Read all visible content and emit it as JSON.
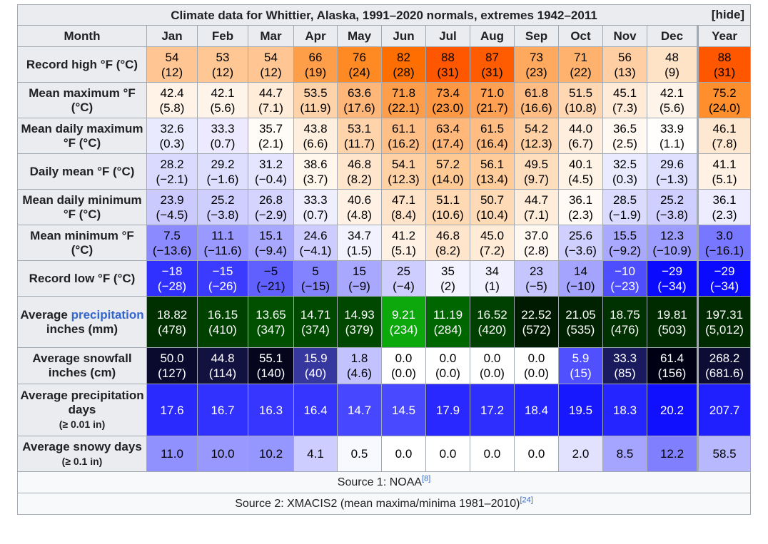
{
  "title": "Climate data for Whittier, Alaska, 1991–2020 normals, extremes 1942–2011",
  "hide_label": "[hide]",
  "month_header": "Month",
  "months": [
    "Jan",
    "Feb",
    "Mar",
    "Apr",
    "May",
    "Jun",
    "Jul",
    "Aug",
    "Sep",
    "Oct",
    "Nov",
    "Dec",
    "Year"
  ],
  "rows": [
    {
      "key": "record-high",
      "label": "Record high °F (°C)",
      "cells": [
        [
          "54",
          "(12)",
          "#ffc592"
        ],
        [
          "53",
          "(12)",
          "#ffc794"
        ],
        [
          "54",
          "(12)",
          "#ffc592"
        ],
        [
          "66",
          "(19)",
          "#ff9e49"
        ],
        [
          "76",
          "(24)",
          "#ff8a23"
        ],
        [
          "82",
          "(28)",
          "#ff6e00"
        ],
        [
          "88",
          "(31)",
          "#ff5600"
        ],
        [
          "87",
          "(31)",
          "#ff5b00"
        ],
        [
          "73",
          "(23)",
          "#ffa95e"
        ],
        [
          "71",
          "(22)",
          "#ffb26e"
        ],
        [
          "56",
          "(13)",
          "#ffcfa3"
        ],
        [
          "48",
          "(9)",
          "#ffe3c7"
        ],
        [
          "88",
          "(31)",
          "#ff5600"
        ]
      ]
    },
    {
      "key": "mean-max",
      "label": "Mean maximum °F (°C)",
      "cells": [
        [
          "42.4",
          "(5.8)",
          "#fff3e8"
        ],
        [
          "42.1",
          "(5.6)",
          "#fff4e9"
        ],
        [
          "44.7",
          "(7.1)",
          "#ffecd9"
        ],
        [
          "53.5",
          "(11.9)",
          "#ffd3a9"
        ],
        [
          "63.6",
          "(17.6)",
          "#ffb779"
        ],
        [
          "71.8",
          "(22.1)",
          "#ff9e4a"
        ],
        [
          "73.4",
          "(23.0)",
          "#ff9843"
        ],
        [
          "71.0",
          "(21.7)",
          "#ffa052"
        ],
        [
          "61.8",
          "(16.6)",
          "#ffbd83"
        ],
        [
          "51.5",
          "(10.8)",
          "#ffd8b3"
        ],
        [
          "45.1",
          "(7.3)",
          "#ffebd7"
        ],
        [
          "42.1",
          "(5.6)",
          "#fff4e9"
        ],
        [
          "75.2",
          "(24.0)",
          "#ff8e2c"
        ]
      ]
    },
    {
      "key": "mean-daily-max",
      "label": "Mean daily maximum °F (°C)",
      "cells": [
        [
          "32.6",
          "(0.3)",
          "#eaeaff"
        ],
        [
          "33.3",
          "(0.7)",
          "#edeaff"
        ],
        [
          "35.7",
          "(2.1)",
          "#fffbf7"
        ],
        [
          "43.8",
          "(6.6)",
          "#ffefde"
        ],
        [
          "53.1",
          "(11.7)",
          "#ffd4aa"
        ],
        [
          "61.1",
          "(16.2)",
          "#ffbf86"
        ],
        [
          "63.4",
          "(17.4)",
          "#ffb87a"
        ],
        [
          "61.5",
          "(16.4)",
          "#ffbd83"
        ],
        [
          "54.2",
          "(12.3)",
          "#ffd1a4"
        ],
        [
          "44.0",
          "(6.7)",
          "#ffeedd"
        ],
        [
          "36.5",
          "(2.5)",
          "#fff9f2"
        ],
        [
          "33.9",
          "(1.1)",
          "#fffefc"
        ],
        [
          "46.1",
          "(7.8)",
          "#ffe8d1"
        ]
      ]
    },
    {
      "key": "daily-mean",
      "label": "Daily mean °F (°C)",
      "cells": [
        [
          "28.2",
          "(−2.1)",
          "#dadaff"
        ],
        [
          "29.2",
          "(−1.6)",
          "#dedeff"
        ],
        [
          "31.2",
          "(−0.4)",
          "#e5e5ff"
        ],
        [
          "38.6",
          "(3.7)",
          "#fff6ec"
        ],
        [
          "46.8",
          "(8.2)",
          "#ffe5cc"
        ],
        [
          "54.1",
          "(12.3)",
          "#ffd1a5"
        ],
        [
          "57.2",
          "(14.0)",
          "#ffc994"
        ],
        [
          "56.1",
          "(13.4)",
          "#ffcc9a"
        ],
        [
          "49.5",
          "(9.7)",
          "#ffdebe"
        ],
        [
          "40.1",
          "(4.5)",
          "#fff3e6"
        ],
        [
          "32.5",
          "(0.3)",
          "#ebebff"
        ],
        [
          "29.6",
          "(−1.3)",
          "#dfdfff"
        ],
        [
          "41.1",
          "(5.1)",
          "#fff1e3"
        ]
      ]
    },
    {
      "key": "mean-daily-min",
      "label": "Mean daily minimum °F (°C)",
      "cells": [
        [
          "23.9",
          "(−4.5)",
          "#cacaff"
        ],
        [
          "25.2",
          "(−3.8)",
          "#cfcfff"
        ],
        [
          "26.8",
          "(−2.9)",
          "#d4d4ff"
        ],
        [
          "33.3",
          "(0.7)",
          "#eeeeff"
        ],
        [
          "40.6",
          "(4.8)",
          "#fff2e4"
        ],
        [
          "47.1",
          "(8.4)",
          "#ffe4c9"
        ],
        [
          "51.1",
          "(10.6)",
          "#ffd9b4"
        ],
        [
          "50.7",
          "(10.4)",
          "#ffdab7"
        ],
        [
          "44.7",
          "(7.1)",
          "#ffecd9"
        ],
        [
          "36.1",
          "(2.3)",
          "#fffaf4"
        ],
        [
          "28.5",
          "(−1.9)",
          "#dbdbff"
        ],
        [
          "25.2",
          "(−3.8)",
          "#cfcfff"
        ],
        [
          "36.1",
          "(2.3)",
          "#ededff"
        ]
      ]
    },
    {
      "key": "mean-min",
      "label": "Mean minimum °F (°C)",
      "cells": [
        [
          "7.5",
          "(−13.6)",
          "#8b8bff"
        ],
        [
          "11.1",
          "(−11.6)",
          "#9999ff"
        ],
        [
          "15.1",
          "(−9.4)",
          "#a8a8ff"
        ],
        [
          "24.6",
          "(−4.1)",
          "#ccccff"
        ],
        [
          "34.7",
          "(1.5)",
          "#f2f2ff"
        ],
        [
          "41.2",
          "(5.1)",
          "#fff2e4"
        ],
        [
          "46.8",
          "(8.2)",
          "#ffe5cc"
        ],
        [
          "45.0",
          "(7.2)",
          "#ffebd6"
        ],
        [
          "37.0",
          "(2.8)",
          "#fff8f1"
        ],
        [
          "25.6",
          "(−3.6)",
          "#d0d0ff"
        ],
        [
          "15.5",
          "(−9.2)",
          "#a9a9ff"
        ],
        [
          "12.3",
          "(−10.9)",
          "#9d9dff"
        ],
        [
          "3.0",
          "(−16.1)",
          "#7777ff"
        ]
      ]
    },
    {
      "key": "record-low",
      "label": "Record low °F (°C)",
      "cells": [
        [
          "−18",
          "(−28)",
          "#3030ff"
        ],
        [
          "−15",
          "(−26)",
          "#3b3bff"
        ],
        [
          "−5",
          "(−21)",
          "#6060ff"
        ],
        [
          "5",
          "(−15)",
          "#8383ff"
        ],
        [
          "15",
          "(−9)",
          "#a8a8ff"
        ],
        [
          "25",
          "(−4)",
          "#cdcdff"
        ],
        [
          "35",
          "(2)",
          "#f3f3ff"
        ],
        [
          "34",
          "(1)",
          "#f0f0ff"
        ],
        [
          "23",
          "(−5)",
          "#c5c5ff"
        ],
        [
          "14",
          "(−10)",
          "#a4a4ff"
        ],
        [
          "−10",
          "(−23)",
          "#4e4eff"
        ],
        [
          "−29",
          "(−34)",
          "#0a0aff"
        ],
        [
          "−29",
          "(−34)",
          "#0a0aff"
        ]
      ]
    },
    {
      "key": "precipitation",
      "label_parts": [
        "Average ",
        "precipitation",
        " inches (mm)"
      ],
      "cells": [
        [
          "18.82",
          "(478)",
          "#003000"
        ],
        [
          "16.15",
          "(410)",
          "#004100"
        ],
        [
          "13.65",
          "(347)",
          "#005000"
        ],
        [
          "14.71",
          "(374)",
          "#004a00"
        ],
        [
          "14.93",
          "(379)",
          "#004800"
        ],
        [
          "9.21",
          "(234)",
          "#0ca80c"
        ],
        [
          "11.19",
          "(284)",
          "#006600"
        ],
        [
          "16.52",
          "(420)",
          "#004000"
        ],
        [
          "22.52",
          "(572)",
          "#001a00"
        ],
        [
          "21.05",
          "(535)",
          "#002200"
        ],
        [
          "18.75",
          "(476)",
          "#003100"
        ],
        [
          "19.81",
          "(503)",
          "#002b00"
        ],
        [
          "197.31",
          "(5,012)",
          "#002a00"
        ]
      ]
    },
    {
      "key": "snowfall",
      "label": "Average snowfall inches (cm)",
      "cells": [
        [
          "50.0",
          "(127)",
          "#0a0a2e"
        ],
        [
          "44.8",
          "(114)",
          "#121240"
        ],
        [
          "55.1",
          "(140)",
          "#05051e"
        ],
        [
          "15.9",
          "(40)",
          "#3737a0"
        ],
        [
          "1.8",
          "(4.6)",
          "#c2c2ff"
        ],
        [
          "0.0",
          "(0.0)",
          "#ffffff"
        ],
        [
          "0.0",
          "(0.0)",
          "#ffffff"
        ],
        [
          "0.0",
          "(0.0)",
          "#ffffff"
        ],
        [
          "0.0",
          "(0.0)",
          "#ffffff"
        ],
        [
          "5.9",
          "(15)",
          "#5050ff"
        ],
        [
          "33.3",
          "(85)",
          "#1a1a5e"
        ],
        [
          "61.4",
          "(156)",
          "#000014"
        ],
        [
          "268.2",
          "(681.6)",
          "#0c0c34"
        ]
      ]
    },
    {
      "key": "precip-days",
      "label": "Average precipitation days",
      "sub": "(≥ 0.01 in)",
      "cells": [
        [
          "17.6",
          "",
          "#2a2aff"
        ],
        [
          "16.7",
          "",
          "#3232ff"
        ],
        [
          "16.3",
          "",
          "#3636ff"
        ],
        [
          "16.4",
          "",
          "#3535ff"
        ],
        [
          "14.7",
          "",
          "#4747ff"
        ],
        [
          "14.5",
          "",
          "#4949ff"
        ],
        [
          "17.9",
          "",
          "#2828ff"
        ],
        [
          "17.2",
          "",
          "#2e2eff"
        ],
        [
          "18.4",
          "",
          "#2424ff"
        ],
        [
          "19.5",
          "",
          "#1818ff"
        ],
        [
          "18.3",
          "",
          "#2525ff"
        ],
        [
          "20.2",
          "",
          "#1010ff"
        ],
        [
          "207.7",
          "",
          "#2020ff"
        ]
      ]
    },
    {
      "key": "snowy-days",
      "label": "Average snowy days",
      "sub": "(≥ 0.1 in)",
      "cells": [
        [
          "11.0",
          "",
          "#9090ff"
        ],
        [
          "10.0",
          "",
          "#9898ff"
        ],
        [
          "10.2",
          "",
          "#9696ff"
        ],
        [
          "4.1",
          "",
          "#cdcdff"
        ],
        [
          "0.5",
          "",
          "#f8f8ff"
        ],
        [
          "0.0",
          "",
          "#ffffff"
        ],
        [
          "0.0",
          "",
          "#ffffff"
        ],
        [
          "0.0",
          "",
          "#ffffff"
        ],
        [
          "0.0",
          "",
          "#ffffff"
        ],
        [
          "2.0",
          "",
          "#e2e2ff"
        ],
        [
          "8.5",
          "",
          "#a5a5ff"
        ],
        [
          "12.2",
          "",
          "#8080ff"
        ],
        [
          "58.5",
          "",
          "#b8b8ff"
        ]
      ]
    }
  ],
  "source1": {
    "text": "Source 1: NOAA",
    "ref": "[8]"
  },
  "source2": {
    "text": "Source 2: XMACIS2 (mean maxima/minima 1981–2010)",
    "ref": "[24]"
  }
}
